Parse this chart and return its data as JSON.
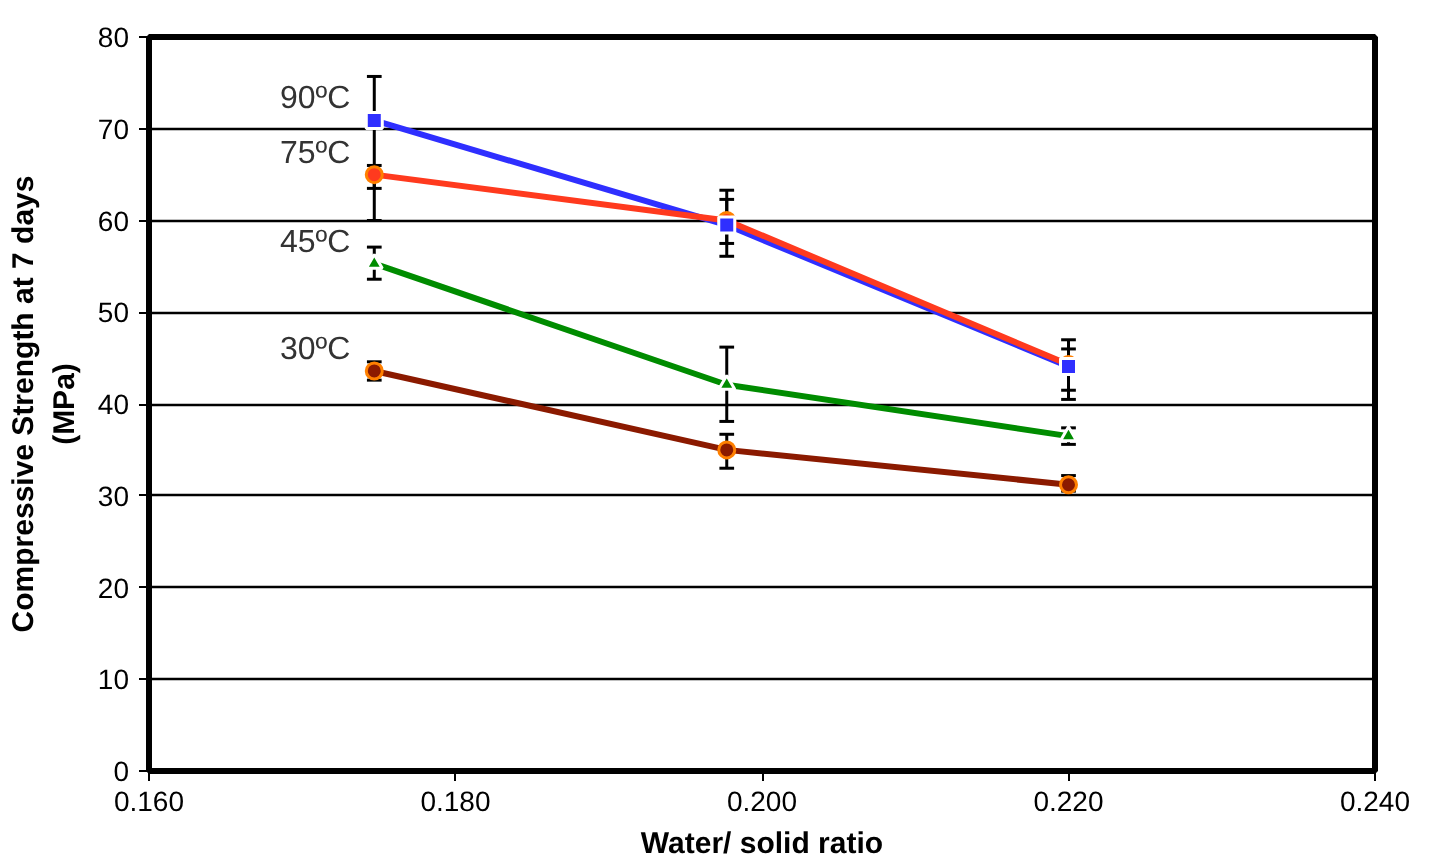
{
  "chart_data": {
    "type": "line",
    "xlabel": "Water/ solid ratio",
    "ylabel": "Compressive Strength at 7 days\n(MPa)",
    "x": [
      0.1747,
      0.1977,
      0.22
    ],
    "series": [
      {
        "name": "90ºC",
        "color": "#2f2fff",
        "marker": "square",
        "values": [
          70.9,
          59.5,
          44.1
        ],
        "errors": [
          [
            60.0,
            75.7
          ],
          [
            57.5,
            62.3
          ],
          [
            40.5,
            47.0
          ]
        ]
      },
      {
        "name": "75ºC",
        "color": "#ff3a1e",
        "marker": "circle",
        "values": [
          65.0,
          60.0,
          44.3
        ],
        "errors": [
          [
            63.5,
            66.0
          ],
          [
            56.1,
            63.3
          ],
          [
            41.5,
            46.0
          ]
        ]
      },
      {
        "name": "45ºC",
        "color": "#008c00",
        "marker": "triangle",
        "values": [
          55.3,
          42.1,
          36.5
        ],
        "errors": [
          [
            53.6,
            57.1
          ],
          [
            38.1,
            46.2
          ],
          [
            35.6,
            37.4
          ]
        ]
      },
      {
        "name": "30ºC",
        "color": "#8b1a00",
        "marker": "circle",
        "values": [
          43.6,
          35.0,
          31.2
        ],
        "errors": [
          [
            42.6,
            44.6
          ],
          [
            33.0,
            36.7
          ],
          [
            30.5,
            32.2
          ]
        ]
      }
    ],
    "xlim": [
      0.16,
      0.24
    ],
    "xticks": [
      {
        "value": 0.16,
        "label": "0.160"
      },
      {
        "value": 0.18,
        "label": "0.180"
      },
      {
        "value": 0.2,
        "label": "0.200"
      },
      {
        "value": 0.22,
        "label": "0.220"
      },
      {
        "value": 0.24,
        "label": "0.240"
      }
    ],
    "ylim": [
      0,
      80
    ],
    "yticks": [
      0,
      10,
      20,
      30,
      40,
      50,
      60,
      70,
      80
    ],
    "grid": "y"
  }
}
